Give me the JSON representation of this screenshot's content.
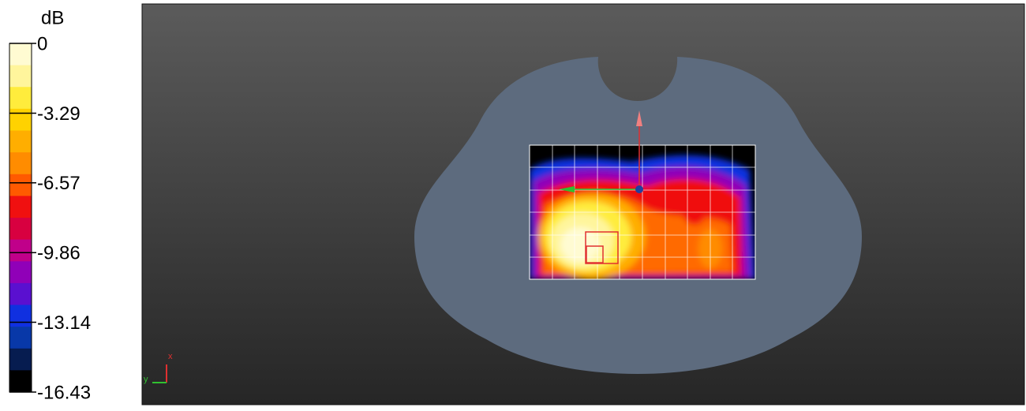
{
  "colorbar": {
    "unit": "dB",
    "lim": [
      -16.43,
      0
    ],
    "ticks": [
      0,
      -3.29,
      -6.57,
      -9.86,
      -13.14,
      -16.43
    ],
    "colors": [
      "#fffbd2",
      "#fff59c",
      "#ffec3c",
      "#ffd200",
      "#ffae00",
      "#ff8c00",
      "#ff5a00",
      "#f01010",
      "#d80040",
      "#c0008a",
      "#9000b8",
      "#5a10d0",
      "#1030e0",
      "#0838a8",
      "#061c50",
      "#000000"
    ]
  },
  "axes": {
    "x": "x",
    "y": "y"
  }
}
